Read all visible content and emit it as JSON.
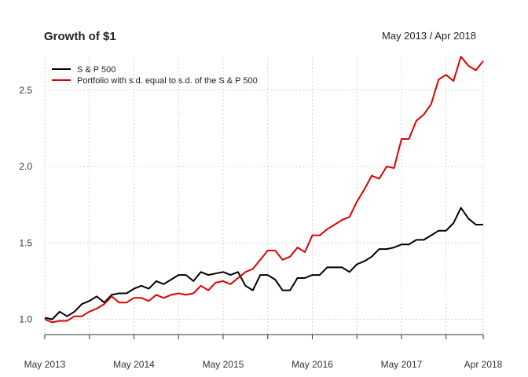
{
  "chart_data": {
    "type": "line",
    "title": "Growth of $1",
    "date_range": "May 2013 / Apr 2018",
    "xlabel": "",
    "ylabel": "",
    "x_ticks": [
      "May 2013",
      "May 2014",
      "May 2015",
      "May 2016",
      "May 2017",
      "Apr 2018"
    ],
    "y_ticks": [
      "1.0",
      "1.5",
      "2.0",
      "2.5"
    ],
    "y_tick_values": [
      1.0,
      1.5,
      2.0,
      2.5
    ],
    "ylim": [
      0.9,
      2.72
    ],
    "grid": true,
    "legend_position": "top-left",
    "x": [
      "2013-05",
      "2013-06",
      "2013-07",
      "2013-08",
      "2013-09",
      "2013-10",
      "2013-11",
      "2013-12",
      "2014-01",
      "2014-02",
      "2014-03",
      "2014-04",
      "2014-05",
      "2014-06",
      "2014-07",
      "2014-08",
      "2014-09",
      "2014-10",
      "2014-11",
      "2014-12",
      "2015-01",
      "2015-02",
      "2015-03",
      "2015-04",
      "2015-05",
      "2015-06",
      "2015-07",
      "2015-08",
      "2015-09",
      "2015-10",
      "2015-11",
      "2015-12",
      "2016-01",
      "2016-02",
      "2016-03",
      "2016-04",
      "2016-05",
      "2016-06",
      "2016-07",
      "2016-08",
      "2016-09",
      "2016-10",
      "2016-11",
      "2016-12",
      "2017-01",
      "2017-02",
      "2017-03",
      "2017-04",
      "2017-05",
      "2017-06",
      "2017-07",
      "2017-08",
      "2017-09",
      "2017-10",
      "2017-11",
      "2017-12",
      "2018-01",
      "2018-02",
      "2018-03",
      "2018-04"
    ],
    "series": [
      {
        "name": "S & P 500",
        "color": "#000000",
        "values": [
          1.01,
          1.0,
          1.05,
          1.02,
          1.05,
          1.1,
          1.12,
          1.15,
          1.11,
          1.16,
          1.17,
          1.17,
          1.2,
          1.22,
          1.2,
          1.25,
          1.23,
          1.26,
          1.29,
          1.29,
          1.25,
          1.31,
          1.29,
          1.3,
          1.31,
          1.29,
          1.31,
          1.22,
          1.19,
          1.29,
          1.29,
          1.26,
          1.19,
          1.19,
          1.27,
          1.27,
          1.29,
          1.29,
          1.34,
          1.34,
          1.34,
          1.31,
          1.36,
          1.38,
          1.41,
          1.46,
          1.46,
          1.47,
          1.49,
          1.49,
          1.52,
          1.52,
          1.55,
          1.58,
          1.58,
          1.63,
          1.73,
          1.66,
          1.62,
          1.62
        ]
      },
      {
        "name": "Portfolio with s.d. equal to s.d. of the S & P 500",
        "color": "#dd0000",
        "values": [
          1.0,
          0.98,
          0.99,
          0.99,
          1.02,
          1.02,
          1.05,
          1.07,
          1.1,
          1.15,
          1.11,
          1.11,
          1.14,
          1.14,
          1.12,
          1.16,
          1.14,
          1.16,
          1.17,
          1.16,
          1.17,
          1.22,
          1.19,
          1.24,
          1.25,
          1.23,
          1.27,
          1.31,
          1.33,
          1.39,
          1.45,
          1.45,
          1.39,
          1.41,
          1.47,
          1.44,
          1.55,
          1.55,
          1.59,
          1.62,
          1.65,
          1.67,
          1.77,
          1.85,
          1.94,
          1.92,
          2.0,
          1.99,
          2.18,
          2.18,
          2.3,
          2.34,
          2.41,
          2.57,
          2.6,
          2.56,
          2.72,
          2.66,
          2.63,
          2.69
        ]
      }
    ]
  }
}
